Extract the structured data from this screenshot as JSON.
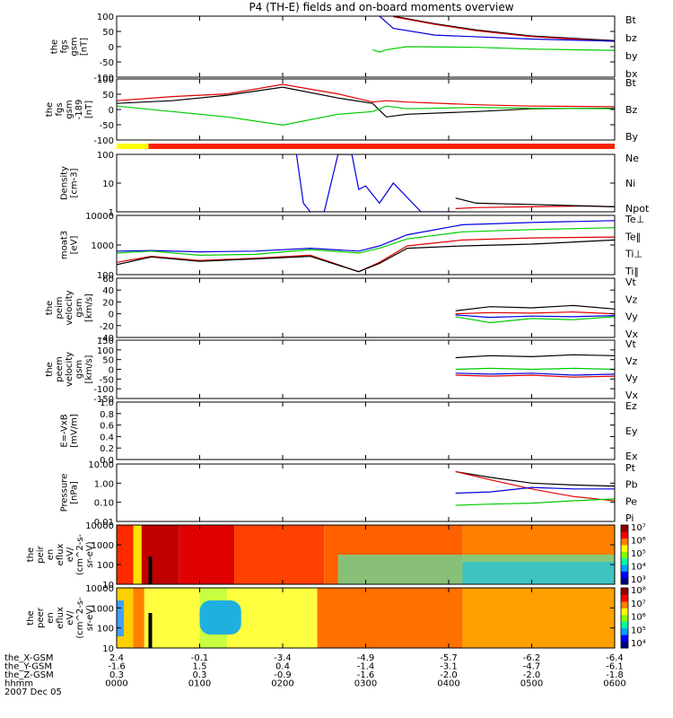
{
  "title": "P4 (TH-E) fields and on-board moments overview",
  "footer": {
    "rows": [
      {
        "label": "the_X-GSM",
        "values": [
          "2.4",
          "-0.1",
          "-3.4",
          "-4.9",
          "-5.7",
          "-6.2",
          "-6.4"
        ]
      },
      {
        "label": "the_Y-GSM",
        "values": [
          "-1.6",
          "1.5",
          "0.4",
          "-1.4",
          "-3.1",
          "-4.7",
          "-6.1"
        ]
      },
      {
        "label": "the_Z-GSM",
        "values": [
          "0.3",
          "0.3",
          "-0.9",
          "-1.6",
          "-2.0",
          "-2.0",
          "-1.8"
        ]
      },
      {
        "label": "hhmm",
        "values": [
          "0000",
          "0100",
          "0200",
          "0300",
          "0400",
          "0500",
          "0600"
        ]
      }
    ],
    "date": "2007 Dec 05"
  },
  "colors": {
    "black": "#000000",
    "red": "#e00000",
    "green": "#00cc00",
    "blue": "#0000e0"
  },
  "chart_data": [
    {
      "type": "line",
      "ylabel": [
        "the",
        "fgs",
        "gsm",
        "[nT]"
      ],
      "ylim": [
        -100,
        100
      ],
      "yticks": [
        "100",
        "50",
        "0",
        "-50",
        "-100"
      ],
      "legend": [
        {
          "name": "Bt",
          "color": "#000000"
        },
        {
          "name": "bz",
          "color": "#e00000"
        },
        {
          "name": "by",
          "color": "#00cc00"
        },
        {
          "name": "bx",
          "color": "#0000e0"
        }
      ],
      "series": [
        {
          "name": "Bt",
          "color": "#000000",
          "x": [
            200,
            230,
            260,
            300,
            360
          ],
          "y": [
            100,
            75,
            55,
            35,
            20
          ]
        },
        {
          "name": "bz",
          "color": "#e00000",
          "x": [
            200,
            230,
            260,
            300,
            360
          ],
          "y": [
            98,
            73,
            52,
            33,
            17
          ]
        },
        {
          "name": "by",
          "color": "#00cc00",
          "x": [
            185,
            190,
            195,
            210,
            260,
            300,
            360
          ],
          "y": [
            -10,
            -18,
            -10,
            0,
            -2,
            -8,
            -12
          ]
        },
        {
          "name": "bx",
          "color": "#0000e0",
          "x": [
            190,
            195,
            200,
            230,
            300,
            360
          ],
          "y": [
            100,
            80,
            60,
            38,
            25,
            18
          ]
        }
      ]
    },
    {
      "type": "line",
      "ylabel": [
        "the",
        "fgs",
        "gsm",
        "-189",
        "[nT]"
      ],
      "ylim": [
        -125,
        100
      ],
      "yticks": [
        "100",
        "50",
        "0",
        "-50",
        "-100"
      ],
      "legend": [
        {
          "name": "Bt",
          "color": "#000000"
        },
        {
          "name": "Bz",
          "color": "#e00000"
        },
        {
          "name": "By",
          "color": "#00cc00"
        }
      ],
      "series": [
        {
          "name": "Bt",
          "color": "#000000",
          "x": [
            0,
            40,
            80,
            120,
            160,
            185,
            195,
            210,
            260,
            300,
            360
          ],
          "y": [
            10,
            20,
            40,
            70,
            30,
            10,
            -40,
            -30,
            -20,
            -10,
            -8
          ]
        },
        {
          "name": "Bz",
          "color": "#e00000",
          "x": [
            0,
            40,
            80,
            120,
            160,
            185,
            195,
            210,
            260,
            300,
            360
          ],
          "y": [
            20,
            35,
            45,
            80,
            45,
            15,
            20,
            15,
            5,
            0,
            -2
          ]
        },
        {
          "name": "By",
          "color": "#00cc00",
          "x": [
            0,
            40,
            80,
            120,
            160,
            185,
            195,
            210,
            260,
            300,
            360
          ],
          "y": [
            0,
            -20,
            -40,
            -70,
            -30,
            -20,
            0,
            -10,
            -5,
            -8,
            -10
          ]
        }
      ],
      "mode_bar": [
        {
          "from": 0,
          "to": 23,
          "color": "#ffff00"
        },
        {
          "from": 23,
          "to": 360,
          "color": "#ff2000"
        }
      ]
    },
    {
      "type": "line",
      "ylabel": [
        "Density",
        "[cm-3]"
      ],
      "yscale": "log",
      "ylim": [
        1,
        100
      ],
      "yticks": [
        "100",
        "10",
        "1"
      ],
      "legend": [
        {
          "name": "Ne",
          "color": "#e00000"
        },
        {
          "name": "Ni",
          "color": "#000000"
        },
        {
          "name": "Npot",
          "color": "#0000e0"
        }
      ],
      "series": [
        {
          "name": "Ne",
          "color": "#e00000",
          "x": [
            245,
            260,
            300,
            340,
            360
          ],
          "y": [
            1.3,
            1.4,
            1.5,
            1.6,
            1.5
          ]
        },
        {
          "name": "Ni",
          "color": "#000000",
          "x": [
            245,
            260,
            300,
            340,
            360
          ],
          "y": [
            3,
            2,
            1.8,
            1.6,
            1.5
          ]
        },
        {
          "name": "Npot",
          "color": "#0000e0",
          "x": [
            130,
            135,
            140,
            150,
            160,
            170,
            175,
            180,
            190,
            200,
            220,
            245
          ],
          "y": [
            100,
            2,
            1,
            1,
            100,
            100,
            6,
            8,
            2,
            10,
            1,
            1
          ]
        }
      ]
    },
    {
      "type": "line",
      "ylabel": [
        "moat3",
        "[eV]"
      ],
      "yscale": "log",
      "ylim": [
        30,
        10000
      ],
      "yticks": [
        "10000",
        "1000",
        "100"
      ],
      "legend": [
        {
          "name": "Te⊥",
          "color": "#e00000"
        },
        {
          "name": "Te‖",
          "color": "#000000"
        },
        {
          "name": "Ti⊥",
          "color": "#0000e0"
        },
        {
          "name": "Ti‖",
          "color": "#00cc00"
        }
      ],
      "series": [
        {
          "name": "Te⊥",
          "color": "#e00000",
          "x": [
            0,
            25,
            60,
            100,
            140,
            175,
            190,
            210,
            250,
            300,
            360
          ],
          "y": [
            100,
            180,
            120,
            150,
            200,
            40,
            100,
            500,
            900,
            1100,
            1200
          ]
        },
        {
          "name": "Te‖",
          "color": "#000000",
          "x": [
            0,
            25,
            60,
            100,
            140,
            175,
            190,
            210,
            250,
            300,
            360
          ],
          "y": [
            80,
            170,
            110,
            140,
            180,
            40,
            90,
            400,
            500,
            600,
            900
          ]
        },
        {
          "name": "Ti⊥",
          "color": "#0000e0",
          "x": [
            0,
            25,
            60,
            100,
            140,
            175,
            190,
            210,
            250,
            300,
            360
          ],
          "y": [
            300,
            320,
            280,
            300,
            400,
            300,
            500,
            1500,
            4000,
            5000,
            6000
          ]
        },
        {
          "name": "Ti‖",
          "color": "#00cc00",
          "x": [
            0,
            25,
            60,
            100,
            140,
            175,
            190,
            210,
            250,
            300,
            360
          ],
          "y": [
            250,
            300,
            200,
            220,
            350,
            250,
            400,
            1000,
            2000,
            2500,
            3000
          ]
        }
      ]
    },
    {
      "type": "line",
      "ylabel": [
        "the",
        "peim",
        "velocity",
        "gsm",
        "[km/s]"
      ],
      "ylim": [
        -40,
        60
      ],
      "yticks": [
        "60",
        "40",
        "20",
        "0",
        "-20",
        "-40"
      ],
      "legend": [
        {
          "name": "Vt",
          "color": "#000000"
        },
        {
          "name": "Vz",
          "color": "#e00000"
        },
        {
          "name": "Vy",
          "color": "#00cc00"
        },
        {
          "name": "Vx",
          "color": "#0000e0"
        }
      ],
      "series": [
        {
          "name": "Vt",
          "color": "#000000",
          "x": [
            245,
            270,
            300,
            330,
            360
          ],
          "y": [
            5,
            12,
            10,
            14,
            8
          ]
        },
        {
          "name": "Vz",
          "color": "#e00000",
          "x": [
            245,
            270,
            300,
            330,
            360
          ],
          "y": [
            0,
            2,
            1,
            3,
            0
          ]
        },
        {
          "name": "Vy",
          "color": "#00cc00",
          "x": [
            245,
            270,
            300,
            330,
            360
          ],
          "y": [
            -5,
            -15,
            -8,
            -10,
            -5
          ]
        },
        {
          "name": "Vx",
          "color": "#0000e0",
          "x": [
            245,
            270,
            300,
            330,
            360
          ],
          "y": [
            -2,
            -6,
            -4,
            -5,
            -3
          ]
        }
      ]
    },
    {
      "type": "line",
      "ylabel": [
        "the",
        "peem",
        "velocity",
        "gsm",
        "[km/s]"
      ],
      "ylim": [
        -150,
        150
      ],
      "yticks": [
        "150",
        "100",
        "50",
        "0",
        "-50",
        "-100",
        "-150"
      ],
      "legend": [
        {
          "name": "Vt",
          "color": "#000000"
        },
        {
          "name": "Vz",
          "color": "#e00000"
        },
        {
          "name": "Vy",
          "color": "#00cc00"
        },
        {
          "name": "Vx",
          "color": "#0000e0"
        }
      ],
      "series": [
        {
          "name": "Vt",
          "color": "#000000",
          "x": [
            245,
            270,
            300,
            330,
            360
          ],
          "y": [
            60,
            70,
            65,
            75,
            70
          ]
        },
        {
          "name": "Vz",
          "color": "#e00000",
          "x": [
            245,
            270,
            300,
            330,
            360
          ],
          "y": [
            -30,
            -35,
            -30,
            -40,
            -35
          ]
        },
        {
          "name": "Vy",
          "color": "#00cc00",
          "x": [
            245,
            270,
            300,
            330,
            360
          ],
          "y": [
            0,
            5,
            0,
            5,
            0
          ]
        },
        {
          "name": "Vx",
          "color": "#0000e0",
          "x": [
            245,
            270,
            300,
            330,
            360
          ],
          "y": [
            -20,
            -25,
            -20,
            -30,
            -25
          ]
        }
      ]
    },
    {
      "type": "line",
      "ylabel": [
        "E=-VxB",
        "[mV/m]"
      ],
      "ylim": [
        0,
        1
      ],
      "yticks": [
        "1.0",
        "0.8",
        "0.6",
        "0.4",
        "0.2",
        "0.0"
      ],
      "legend": [
        {
          "name": "Ez",
          "color": "#e00000"
        },
        {
          "name": "Ey",
          "color": "#00cc00"
        },
        {
          "name": "Ex",
          "color": "#0000e0"
        }
      ],
      "series": []
    },
    {
      "type": "line",
      "ylabel": [
        "Pressure",
        "[nPa]"
      ],
      "yscale": "log",
      "ylim": [
        0.01,
        10
      ],
      "yticks": [
        "10.00",
        "1.00",
        "0.10",
        "0.01"
      ],
      "legend": [
        {
          "name": "Pt",
          "color": "#000000"
        },
        {
          "name": "Pb",
          "color": "#e00000"
        },
        {
          "name": "Pe",
          "color": "#00cc00"
        },
        {
          "name": "Pi",
          "color": "#0000e0"
        }
      ],
      "series": [
        {
          "name": "Pt",
          "color": "#000000",
          "x": [
            245,
            270,
            300,
            330,
            360
          ],
          "y": [
            4,
            2,
            1,
            0.8,
            0.7
          ]
        },
        {
          "name": "Pb",
          "color": "#e00000",
          "x": [
            245,
            270,
            300,
            330,
            360
          ],
          "y": [
            4,
            1.5,
            0.5,
            0.2,
            0.12
          ]
        },
        {
          "name": "Pe",
          "color": "#00cc00",
          "x": [
            245,
            270,
            300,
            330,
            360
          ],
          "y": [
            0.07,
            0.08,
            0.09,
            0.12,
            0.15
          ]
        },
        {
          "name": "Pi",
          "color": "#0000e0",
          "x": [
            245,
            270,
            300,
            330,
            360
          ],
          "y": [
            0.3,
            0.35,
            0.6,
            0.5,
            0.5
          ]
        }
      ]
    },
    {
      "type": "heatmap",
      "ylabel": [
        "the",
        "peir",
        "en",
        "eflux",
        "eV/",
        "(cm^2-s-",
        "sr-eV)"
      ],
      "yscale": "log",
      "ylim": [
        7,
        30000
      ],
      "yticks": [
        "10000",
        "1000",
        "100",
        "10"
      ],
      "colorbar": {
        "labels": [
          "10⁷",
          "10⁶",
          "10⁵",
          "10⁴",
          "10³"
        ]
      }
    },
    {
      "type": "heatmap",
      "ylabel": [
        "the",
        "peer",
        "en",
        "eflux",
        "eV/",
        "(cm^2-s-",
        "sr-eV)"
      ],
      "yscale": "log",
      "ylim": [
        7,
        30000
      ],
      "yticks": [
        "10000",
        "1000",
        "100",
        "10"
      ],
      "colorbar": {
        "labels": [
          "10⁸",
          "10⁷",
          "10⁶",
          "10⁵",
          "10⁴"
        ]
      }
    }
  ]
}
